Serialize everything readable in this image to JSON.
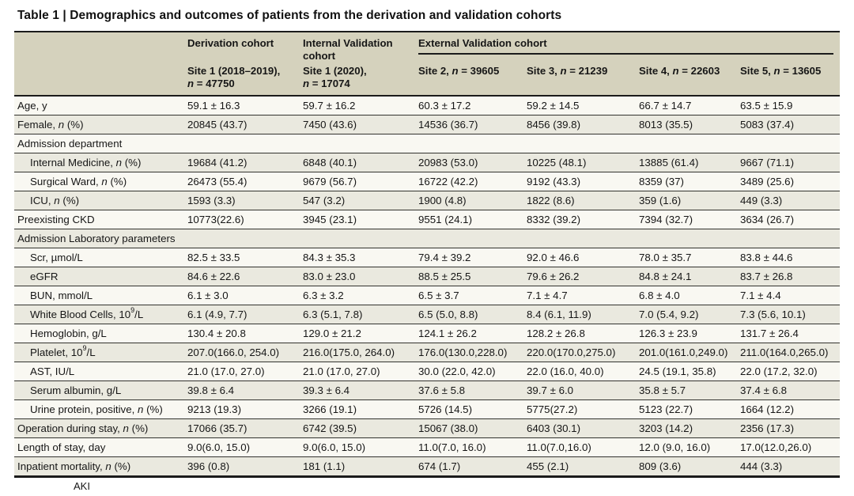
{
  "title": "Table 1 | Demographics and outcomes of patients from the derivation and validation cohorts",
  "colors": {
    "header_bg": "#d5d2bd",
    "row_shaded": "#eae9df",
    "row_plain": "#f9f8f2",
    "rule": "#1b1b1b"
  },
  "header": {
    "groups": [
      {
        "label": "Derivation cohort"
      },
      {
        "label": "Internal Validation cohort"
      },
      {
        "label": "External Validation cohort"
      }
    ],
    "site_columns": [
      {
        "lines": [
          "Site 1 (2018–2019),",
          "*n* = 47750"
        ]
      },
      {
        "lines": [
          "Site 1 (2020),",
          "*n* = 17074"
        ]
      },
      {
        "lines": [
          "Site 2, *n* = 39605"
        ]
      },
      {
        "lines": [
          "Site 3, *n* = 21239"
        ]
      },
      {
        "lines": [
          "Site 4, *n* = 22603"
        ]
      },
      {
        "lines": [
          "Site 5, *n* = 13605"
        ]
      }
    ]
  },
  "rows": [
    {
      "label": "Age, y",
      "indent": false,
      "section": false,
      "values": [
        "59.1 ± 16.3",
        "59.7 ± 16.2",
        "60.3 ± 17.2",
        "59.2 ± 14.5",
        "66.7 ± 14.7",
        "63.5 ± 15.9"
      ]
    },
    {
      "label": "Female, *n* (%)",
      "indent": false,
      "section": false,
      "values": [
        "20845 (43.7)",
        "7450 (43.6)",
        "14536 (36.7)",
        "8456 (39.8)",
        "8013 (35.5)",
        "5083 (37.4)"
      ]
    },
    {
      "label": "Admission department",
      "indent": false,
      "section": true,
      "values": []
    },
    {
      "label": "Internal Medicine, *n* (%)",
      "indent": true,
      "section": false,
      "values": [
        "19684 (41.2)",
        "6848 (40.1)",
        "20983 (53.0)",
        "10225 (48.1)",
        "13885 (61.4)",
        "9667 (71.1)"
      ]
    },
    {
      "label": "Surgical Ward, *n* (%)",
      "indent": true,
      "section": false,
      "values": [
        "26473 (55.4)",
        "9679 (56.7)",
        "16722 (42.2)",
        "9192 (43.3)",
        "8359 (37)",
        "3489 (25.6)"
      ]
    },
    {
      "label": "ICU, *n* (%)",
      "indent": true,
      "section": false,
      "values": [
        "1593 (3.3)",
        "547 (3.2)",
        "1900 (4.8)",
        "1822 (8.6)",
        "359 (1.6)",
        "449 (3.3)"
      ]
    },
    {
      "label": "Preexisting CKD",
      "indent": false,
      "section": false,
      "values": [
        "10773(22.6)",
        "3945 (23.1)",
        "9551 (24.1)",
        "8332 (39.2)",
        "7394 (32.7)",
        "3634 (26.7)"
      ]
    },
    {
      "label": "Admission Laboratory parameters",
      "indent": false,
      "section": true,
      "values": []
    },
    {
      "label": "Scr, µmol/L",
      "indent": true,
      "section": false,
      "values": [
        "82.5 ± 33.5",
        "84.3 ± 35.3",
        "79.4 ± 39.2",
        "92.0 ± 46.6",
        "78.0 ± 35.7",
        "83.8 ± 44.6"
      ]
    },
    {
      "label": "eGFR",
      "indent": true,
      "section": false,
      "values": [
        "84.6 ± 22.6",
        "83.0 ± 23.0",
        "88.5 ± 25.5",
        "79.6 ± 26.2",
        "84.8 ± 24.1",
        "83.7 ± 26.8"
      ]
    },
    {
      "label": "BUN, mmol/L",
      "indent": true,
      "section": false,
      "values": [
        "6.1 ± 3.0",
        "6.3 ± 3.2",
        "6.5 ± 3.7",
        "7.1 ± 4.7",
        "6.8 ± 4.0",
        "7.1 ± 4.4"
      ]
    },
    {
      "label": "White Blood Cells, 10^9^/L",
      "indent": true,
      "section": false,
      "values": [
        "6.1 (4.9, 7.7)",
        "6.3 (5.1, 7.8)",
        "6.5 (5.0, 8.8)",
        "8.4 (6.1, 11.9)",
        "7.0 (5.4, 9.2)",
        "7.3 (5.6, 10.1)"
      ]
    },
    {
      "label": "Hemoglobin, g/L",
      "indent": true,
      "section": false,
      "values": [
        "130.4 ± 20.8",
        "129.0 ± 21.2",
        "124.1 ± 26.2",
        "128.2 ± 26.8",
        "126.3 ± 23.9",
        "131.7 ± 26.4"
      ]
    },
    {
      "label": "Platelet, 10^9^/L",
      "indent": true,
      "section": false,
      "values": [
        "207.0(166.0, 254.0)",
        "216.0(175.0, 264.0)",
        "176.0(130.0,228.0)",
        "220.0(170.0,275.0)",
        "201.0(161.0,249.0)",
        "211.0(164.0,265.0)"
      ]
    },
    {
      "label": "AST, IU/L",
      "indent": true,
      "section": false,
      "values": [
        "21.0 (17.0, 27.0)",
        "21.0 (17.0, 27.0)",
        "30.0 (22.0, 42.0)",
        "22.0 (16.0, 40.0)",
        "24.5 (19.1, 35.8)",
        "22.0 (17.2, 32.0)"
      ]
    },
    {
      "label": "Serum albumin, g/L",
      "indent": true,
      "section": false,
      "values": [
        "39.8 ± 6.4",
        "39.3 ± 6.4",
        "37.6 ± 5.8",
        "39.7 ± 6.0",
        "35.8 ± 5.7",
        "37.4 ± 6.8"
      ]
    },
    {
      "label": "Urine protein, positive, *n* (%)",
      "indent": true,
      "section": false,
      "values": [
        "9213 (19.3)",
        "3266 (19.1)",
        "5726 (14.5)",
        "5775(27.2)",
        "5123 (22.7)",
        "1664 (12.2)"
      ]
    },
    {
      "label": "Operation during stay, *n* (%)",
      "indent": false,
      "section": false,
      "values": [
        "17066 (35.7)",
        "6742 (39.5)",
        "15067 (38.0)",
        "6403 (30.1)",
        "3203 (14.2)",
        "2356 (17.3)"
      ]
    },
    {
      "label": "Length of stay, day",
      "indent": false,
      "section": false,
      "values": [
        "9.0(6.0, 15.0)",
        "9.0(6.0, 15.0)",
        "11.0(7.0, 16.0)",
        "11.0(7.0,16.0)",
        "12.0 (9.0, 16.0)",
        "17.0(12.0,26.0)"
      ]
    },
    {
      "label": "Inpatient mortality, *n* (%)",
      "indent": false,
      "section": false,
      "values": [
        "396 (0.8)",
        "181 (1.1)",
        "674 (1.7)",
        "455 (2.1)",
        "809 (3.6)",
        "444 (3.3)"
      ]
    }
  ],
  "footnote_clipped": "AKI"
}
